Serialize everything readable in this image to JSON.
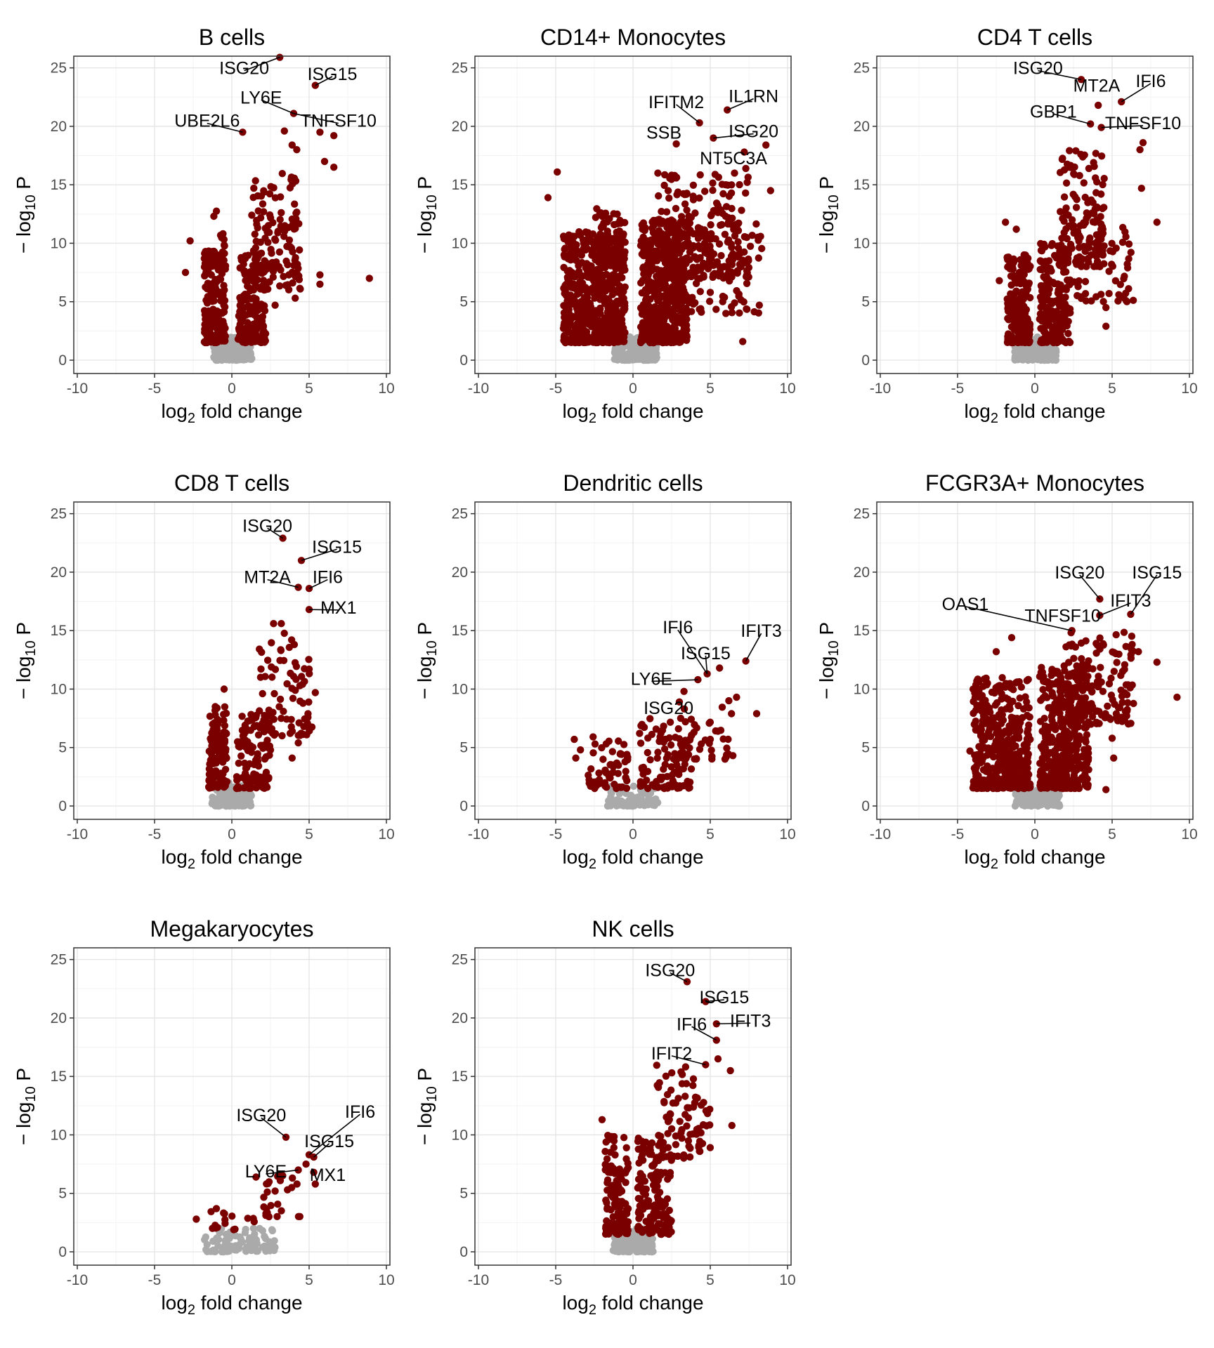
{
  "colors": {
    "significant": "#7a0000",
    "nonsignificant": "#aaaaaa",
    "grid_major": "#e4e4e4",
    "grid_minor": "#f3f3f3",
    "axis": "#333333",
    "text": "#000000"
  },
  "axes": {
    "xlabel_main": "log",
    "xlabel_sub": "2",
    "xlabel_tail": " fold change",
    "ylabel_prefix": "− log",
    "ylabel_sub": "10",
    "ylabel_tail": " P",
    "xlim": [
      -10,
      10
    ],
    "ylim": [
      0,
      25
    ],
    "x_ticks": [
      -10,
      -5,
      0,
      5,
      10
    ],
    "y_ticks": [
      0,
      5,
      10,
      15,
      20,
      25
    ]
  },
  "chart_data": [
    {
      "type": "scatter",
      "title": "B cells",
      "sig_points": [
        [
          3.1,
          25.9
        ],
        [
          5.4,
          23.5
        ],
        [
          4.0,
          21.1
        ],
        [
          3.4,
          19.6
        ],
        [
          0.7,
          19.5
        ],
        [
          5.7,
          19.5
        ],
        [
          6.6,
          19.2
        ],
        [
          6.0,
          17.0
        ],
        [
          6.6,
          16.5
        ],
        [
          3.9,
          18.4
        ],
        [
          4.2,
          18.0
        ],
        [
          8.9,
          7.0
        ],
        [
          5.7,
          7.3
        ],
        [
          5.7,
          6.5
        ],
        [
          4.1,
          5.3
        ],
        [
          2.8,
          4.7
        ],
        [
          -3.0,
          7.5
        ],
        [
          -2.7,
          10.2
        ]
      ],
      "sig_clouds": [
        {
          "x": [
            -1.8,
            -0.4
          ],
          "y": [
            1.5,
            9.5
          ],
          "n": 220
        },
        {
          "x": [
            0.4,
            2.2
          ],
          "y": [
            1.5,
            9.0
          ],
          "n": 180
        },
        {
          "x": [
            1.2,
            4.5
          ],
          "y": [
            6,
            16
          ],
          "n": 130
        },
        {
          "x": [
            -1.2,
            -0.4
          ],
          "y": [
            8,
            13
          ],
          "n": 20
        }
      ],
      "ns_cloud": {
        "x": [
          -1.2,
          1.3
        ],
        "y": [
          0,
          2
        ],
        "n": 160
      },
      "labels": [
        {
          "text": "ISG20",
          "pt": [
            3.1,
            25.9
          ],
          "lx": 0.8,
          "ly": 25.0
        },
        {
          "text": "ISG15",
          "pt": [
            5.4,
            23.5
          ],
          "lx": 6.5,
          "ly": 24.5
        },
        {
          "text": "LY6E",
          "pt": [
            4.0,
            21.1
          ],
          "lx": 1.9,
          "ly": 22.5
        },
        {
          "text": "UBE2L6",
          "pt": [
            0.7,
            19.5
          ],
          "lx": -1.6,
          "ly": 20.5
        },
        {
          "text": "TNFSF10",
          "pt": [
            4.0,
            21.1
          ],
          "lx": 6.9,
          "ly": 20.5
        }
      ]
    },
    {
      "type": "scatter",
      "title": "CD14+ Monocytes",
      "sig_points": [
        [
          4.3,
          20.3
        ],
        [
          6.1,
          21.4
        ],
        [
          2.8,
          18.5
        ],
        [
          5.2,
          19.0
        ],
        [
          7.2,
          17.8
        ],
        [
          8.6,
          18.4
        ],
        [
          7.3,
          16.4
        ],
        [
          8.9,
          14.5
        ],
        [
          6.0,
          15.0
        ],
        [
          -4.9,
          16.1
        ],
        [
          -5.5,
          13.9
        ],
        [
          7.1,
          1.6
        ],
        [
          5.0,
          5.8
        ],
        [
          6.1,
          8.0
        ]
      ],
      "sig_clouds": [
        {
          "x": [
            -4.5,
            -0.5
          ],
          "y": [
            1.5,
            11
          ],
          "n": 600
        },
        {
          "x": [
            -2.5,
            -0.5
          ],
          "y": [
            8,
            13
          ],
          "n": 60
        },
        {
          "x": [
            0.5,
            3.5
          ],
          "y": [
            1.5,
            12
          ],
          "n": 500
        },
        {
          "x": [
            1.5,
            7.5
          ],
          "y": [
            7,
            16
          ],
          "n": 220
        },
        {
          "x": [
            2.5,
            8.5
          ],
          "y": [
            4,
            12
          ],
          "n": 90
        }
      ],
      "ns_cloud": {
        "x": [
          -1.2,
          1.6
        ],
        "y": [
          0,
          2
        ],
        "n": 220
      },
      "labels": [
        {
          "text": "IFITM2",
          "pt": [
            4.3,
            20.3
          ],
          "lx": 2.8,
          "ly": 22.1
        },
        {
          "text": "IL1RN",
          "pt": [
            6.1,
            21.4
          ],
          "lx": 7.8,
          "ly": 22.6
        },
        {
          "text": "SSB",
          "pt": [
            2.8,
            18.5
          ],
          "lx": 2.0,
          "ly": 19.5
        },
        {
          "text": "ISG20",
          "pt": [
            5.2,
            19.0
          ],
          "lx": 7.8,
          "ly": 19.6
        },
        {
          "text": "NT5C3A",
          "pt": [
            7.2,
            17.8
          ],
          "lx": 6.5,
          "ly": 17.3
        }
      ]
    },
    {
      "type": "scatter",
      "title": "CD4 T cells",
      "sig_points": [
        [
          3.0,
          24.0
        ],
        [
          5.6,
          22.1
        ],
        [
          4.1,
          21.8
        ],
        [
          3.6,
          20.2
        ],
        [
          4.3,
          19.9
        ],
        [
          7.0,
          18.6
        ],
        [
          6.8,
          18.0
        ],
        [
          7.9,
          11.8
        ],
        [
          6.9,
          14.7
        ],
        [
          4.8,
          7.6
        ],
        [
          4.8,
          5.7
        ],
        [
          4.6,
          4.5
        ],
        [
          4.6,
          2.9
        ],
        [
          -1.9,
          11.8
        ],
        [
          -1.2,
          11.2
        ],
        [
          -2.3,
          6.8
        ]
      ],
      "sig_clouds": [
        {
          "x": [
            -1.8,
            -0.3
          ],
          "y": [
            1.5,
            9
          ],
          "n": 200
        },
        {
          "x": [
            0.3,
            2.3
          ],
          "y": [
            1.5,
            10
          ],
          "n": 200
        },
        {
          "x": [
            1.5,
            4.5
          ],
          "y": [
            8,
            18
          ],
          "n": 140
        },
        {
          "x": [
            2.5,
            6.5
          ],
          "y": [
            5,
            12
          ],
          "n": 50
        }
      ],
      "ns_cloud": {
        "x": [
          -1.3,
          1.4
        ],
        "y": [
          0,
          2
        ],
        "n": 170
      },
      "labels": [
        {
          "text": "ISG20",
          "pt": [
            3.0,
            24.0
          ],
          "lx": 0.2,
          "ly": 25.0
        },
        {
          "text": "MT2A",
          "pt": [
            3.0,
            24.0
          ],
          "lx": 4.0,
          "ly": 23.5
        },
        {
          "text": "IFI6",
          "pt": [
            5.6,
            22.1
          ],
          "lx": 7.5,
          "ly": 23.9
        },
        {
          "text": "GBP1",
          "pt": [
            3.6,
            20.2
          ],
          "lx": 1.2,
          "ly": 21.3
        },
        {
          "text": "TNFSF10",
          "pt": [
            4.3,
            19.9
          ],
          "lx": 7.0,
          "ly": 20.3
        }
      ]
    },
    {
      "type": "scatter",
      "title": "CD8 T cells",
      "sig_points": [
        [
          3.3,
          22.9
        ],
        [
          4.5,
          21.0
        ],
        [
          4.3,
          18.7
        ],
        [
          5.0,
          18.6
        ],
        [
          5.0,
          16.8
        ],
        [
          3.2,
          15.6
        ],
        [
          2.7,
          15.6
        ],
        [
          5.4,
          9.7
        ],
        [
          5.0,
          11.7
        ],
        [
          4.3,
          5.4
        ],
        [
          3.9,
          4.1
        ],
        [
          -0.5,
          10.0
        ]
      ],
      "sig_clouds": [
        {
          "x": [
            -1.5,
            -0.3
          ],
          "y": [
            1.5,
            8.5
          ],
          "n": 110
        },
        {
          "x": [
            0.3,
            2.5
          ],
          "y": [
            1.5,
            8
          ],
          "n": 110
        },
        {
          "x": [
            1.5,
            5.2
          ],
          "y": [
            6,
            15
          ],
          "n": 80
        }
      ],
      "ns_cloud": {
        "x": [
          -1.3,
          1.3
        ],
        "y": [
          0,
          2
        ],
        "n": 130
      },
      "labels": [
        {
          "text": "ISG20",
          "pt": [
            3.3,
            22.9
          ],
          "lx": 2.3,
          "ly": 24.0
        },
        {
          "text": "ISG15",
          "pt": [
            4.5,
            21.0
          ],
          "lx": 6.8,
          "ly": 22.2
        },
        {
          "text": "MT2A",
          "pt": [
            4.3,
            18.7
          ],
          "lx": 2.3,
          "ly": 19.6
        },
        {
          "text": "IFI6",
          "pt": [
            5.0,
            18.6
          ],
          "lx": 6.2,
          "ly": 19.6
        },
        {
          "text": "MX1",
          "pt": [
            5.0,
            16.8
          ],
          "lx": 6.9,
          "ly": 17.0
        }
      ]
    },
    {
      "type": "scatter",
      "title": "Dendritic cells",
      "sig_points": [
        [
          7.3,
          12.4
        ],
        [
          4.8,
          11.3
        ],
        [
          4.2,
          10.8
        ],
        [
          5.6,
          11.8
        ],
        [
          3.3,
          9.8
        ],
        [
          3.0,
          8.9
        ],
        [
          6.7,
          9.3
        ],
        [
          6.2,
          9.0
        ],
        [
          8.0,
          7.9
        ],
        [
          5.5,
          6.4
        ],
        [
          5.0,
          5.7
        ],
        [
          -3.8,
          5.7
        ],
        [
          -3.4,
          4.8
        ],
        [
          -3.7,
          4.1
        ]
      ],
      "sig_clouds": [
        {
          "x": [
            -3.0,
            -0.3
          ],
          "y": [
            1.5,
            6
          ],
          "n": 60
        },
        {
          "x": [
            0.4,
            3.8
          ],
          "y": [
            1.5,
            7.5
          ],
          "n": 100
        },
        {
          "x": [
            3.0,
            6.5
          ],
          "y": [
            4,
            9
          ],
          "n": 40
        }
      ],
      "ns_cloud": {
        "x": [
          -1.7,
          1.6
        ],
        "y": [
          0,
          1.8
        ],
        "n": 80
      },
      "labels": [
        {
          "text": "IFI6",
          "pt": [
            4.8,
            11.3
          ],
          "lx": 2.9,
          "ly": 15.3
        },
        {
          "text": "IFIT3",
          "pt": [
            7.3,
            12.4
          ],
          "lx": 8.3,
          "ly": 15.0
        },
        {
          "text": "ISG15",
          "pt": [
            4.8,
            11.3
          ],
          "lx": 4.7,
          "ly": 13.1
        },
        {
          "text": "LY6E",
          "pt": [
            4.2,
            10.8
          ],
          "lx": 1.2,
          "ly": 10.9
        },
        {
          "text": "ISG20",
          "pt": [
            3.3,
            8.6
          ],
          "lx": 2.3,
          "ly": 8.4
        }
      ]
    },
    {
      "type": "scatter",
      "title": "FCGR3A+ Monocytes",
      "sig_points": [
        [
          4.2,
          17.7
        ],
        [
          6.2,
          16.4
        ],
        [
          4.2,
          16.3
        ],
        [
          2.4,
          15.0
        ],
        [
          7.9,
          12.3
        ],
        [
          9.2,
          9.3
        ],
        [
          6.7,
          13.2
        ],
        [
          5.0,
          5.8
        ],
        [
          5.1,
          4.1
        ],
        [
          4.6,
          1.4
        ],
        [
          -1.5,
          14.4
        ],
        [
          -2.5,
          13.2
        ],
        [
          -4.2,
          4.7
        ]
      ],
      "sig_clouds": [
        {
          "x": [
            -4.0,
            -0.3
          ],
          "y": [
            1.5,
            11
          ],
          "n": 380
        },
        {
          "x": [
            0.3,
            3.5
          ],
          "y": [
            1.5,
            12
          ],
          "n": 380
        },
        {
          "x": [
            2.0,
            6.5
          ],
          "y": [
            7,
            15
          ],
          "n": 140
        }
      ],
      "ns_cloud": {
        "x": [
          -1.3,
          1.6
        ],
        "y": [
          0,
          2
        ],
        "n": 170
      },
      "labels": [
        {
          "text": "ISG20",
          "pt": [
            4.2,
            17.7
          ],
          "lx": 2.9,
          "ly": 20.0
        },
        {
          "text": "ISG15",
          "pt": [
            6.2,
            16.4
          ],
          "lx": 7.9,
          "ly": 20.0
        },
        {
          "text": "IFIT3",
          "pt": [
            4.2,
            16.3
          ],
          "lx": 6.2,
          "ly": 17.6
        },
        {
          "text": "OAS1",
          "pt": [
            2.4,
            15.0
          ],
          "lx": -4.5,
          "ly": 17.3
        },
        {
          "text": "TNFSF10",
          "pt": [
            2.4,
            15.0
          ],
          "lx": 1.8,
          "ly": 16.3
        }
      ]
    },
    {
      "type": "scatter",
      "title": "Megakaryocytes",
      "sig_points": [
        [
          3.5,
          9.8
        ],
        [
          5.0,
          8.3
        ],
        [
          5.3,
          8.1
        ],
        [
          4.8,
          7.5
        ],
        [
          4.3,
          7.0
        ],
        [
          5.3,
          6.8
        ],
        [
          5.4,
          5.8
        ],
        [
          3.6,
          5.3
        ],
        [
          2.8,
          5.2
        ],
        [
          -2.3,
          2.8
        ],
        [
          -1.0,
          3.7
        ]
      ],
      "sig_clouds": [
        {
          "x": [
            1.5,
            4.6
          ],
          "y": [
            3,
            7
          ],
          "n": 25
        },
        {
          "x": [
            -1.5,
            1.5
          ],
          "y": [
            1.8,
            3.5
          ],
          "n": 15
        }
      ],
      "ns_cloud": {
        "x": [
          -1.8,
          2.8
        ],
        "y": [
          0,
          2
        ],
        "n": 90
      },
      "labels": [
        {
          "text": "ISG20",
          "pt": [
            3.5,
            9.8
          ],
          "lx": 1.9,
          "ly": 11.7
        },
        {
          "text": "IFI6",
          "pt": [
            5.0,
            8.3
          ],
          "lx": 8.3,
          "ly": 12.0
        },
        {
          "text": "ISG15",
          "pt": [
            5.3,
            8.1
          ],
          "lx": 6.3,
          "ly": 9.5
        },
        {
          "text": "LY6E",
          "pt": [
            4.3,
            7.0
          ],
          "lx": 2.2,
          "ly": 6.9
        },
        {
          "text": "MX1",
          "pt": [
            5.3,
            6.8
          ],
          "lx": 6.2,
          "ly": 6.6
        }
      ]
    },
    {
      "type": "scatter",
      "title": "NK cells",
      "sig_points": [
        [
          3.5,
          23.1
        ],
        [
          4.7,
          21.4
        ],
        [
          5.4,
          18.1
        ],
        [
          5.4,
          19.5
        ],
        [
          5.5,
          16.5
        ],
        [
          6.3,
          15.5
        ],
        [
          6.4,
          10.8
        ],
        [
          4.7,
          16.0
        ],
        [
          -2.0,
          11.3
        ]
      ],
      "sig_clouds": [
        {
          "x": [
            -1.8,
            -0.3
          ],
          "y": [
            1.5,
            10
          ],
          "n": 130
        },
        {
          "x": [
            0.3,
            2.5
          ],
          "y": [
            1.5,
            10
          ],
          "n": 150
        },
        {
          "x": [
            1.5,
            5.0
          ],
          "y": [
            8,
            16
          ],
          "n": 80
        }
      ],
      "ns_cloud": {
        "x": [
          -1.3,
          1.3
        ],
        "y": [
          0,
          2
        ],
        "n": 150
      },
      "labels": [
        {
          "text": "ISG20",
          "pt": [
            3.5,
            23.1
          ],
          "lx": 2.4,
          "ly": 24.1
        },
        {
          "text": "ISG15",
          "pt": [
            4.7,
            21.4
          ],
          "lx": 5.9,
          "ly": 21.8
        },
        {
          "text": "IFI6",
          "pt": [
            5.4,
            18.1
          ],
          "lx": 3.8,
          "ly": 19.5
        },
        {
          "text": "IFIT3",
          "pt": [
            5.4,
            19.5
          ],
          "lx": 7.6,
          "ly": 19.8
        },
        {
          "text": "IFIT2",
          "pt": [
            4.7,
            16.0
          ],
          "lx": 2.5,
          "ly": 17.0
        }
      ]
    }
  ]
}
